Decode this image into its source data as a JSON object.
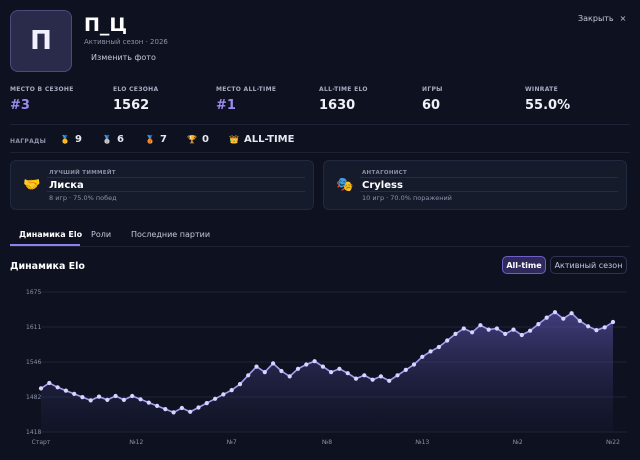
{
  "profile": {
    "avatar_letter": "П",
    "name": "П_Ц",
    "subtitle": "Активный сезон · 2026",
    "change_photo": "Изменить фото",
    "close_label": "Закрыть",
    "close_icon": "×"
  },
  "stats": [
    {
      "label": "МЕСТО В СЕЗОНЕ",
      "value": "#3"
    },
    {
      "label": "ELO СЕЗОНА",
      "value": "1562"
    },
    {
      "label": "МЕСТО ALL-TIME",
      "value": "#1"
    },
    {
      "label": "ALL-TIME ELO",
      "value": "1630"
    },
    {
      "label": "ИГРЫ",
      "value": "60"
    },
    {
      "label": "WINRATE",
      "value": "55.0%"
    }
  ],
  "awards": {
    "label": "НАГРАДЫ",
    "items": [
      {
        "icon": "🥇",
        "value": "9"
      },
      {
        "icon": "🥈",
        "value": "6"
      },
      {
        "icon": "🥉",
        "value": "7"
      },
      {
        "icon": "🏆",
        "value": "0"
      },
      {
        "icon": "👑",
        "value": "ALL-TIME"
      }
    ]
  },
  "cards": {
    "teammate": {
      "icon": "🤝",
      "kicker": "ЛУЧШИЙ ТИММЕЙТ",
      "name": "Лиска",
      "meta": "8 игр · 75.0% побед"
    },
    "antagonist": {
      "icon": "🎭",
      "kicker": "АНТАГОНИСТ",
      "name": "Cryless",
      "meta": "10 игр · 70.0% поражений"
    }
  },
  "tabs": [
    "Динамика Elo",
    "Роли",
    "Последние партии"
  ],
  "chart_section": {
    "title": "Динамика Elo",
    "toggle_alltime": "All-time",
    "toggle_season": "Активный сезон"
  },
  "colors": {
    "accent": "#9c8cf0",
    "line": "#a79cf5",
    "point": "#d9d4ff"
  },
  "chart_data": {
    "type": "area",
    "y_ticks": [
      "1675",
      "1611",
      "1546",
      "1482",
      "1418"
    ],
    "ylim": [
      1418,
      1675
    ],
    "x_tick_labels": [
      "Старт",
      "№12",
      "№7",
      "№8",
      "№13",
      "№2",
      "№22"
    ],
    "values": [
      1498,
      1508,
      1500,
      1494,
      1488,
      1482,
      1476,
      1483,
      1477,
      1484,
      1477,
      1484,
      1478,
      1472,
      1466,
      1460,
      1454,
      1462,
      1455,
      1463,
      1471,
      1479,
      1487,
      1495,
      1506,
      1522,
      1538,
      1528,
      1544,
      1530,
      1520,
      1534,
      1542,
      1548,
      1538,
      1528,
      1534,
      1526,
      1516,
      1522,
      1514,
      1520,
      1512,
      1522,
      1532,
      1542,
      1556,
      1566,
      1574,
      1586,
      1598,
      1608,
      1601,
      1614,
      1606,
      1608,
      1598,
      1606,
      1596,
      1604,
      1616,
      1628,
      1638,
      1626,
      1636,
      1622,
      1612,
      1605,
      1610,
      1620
    ]
  }
}
